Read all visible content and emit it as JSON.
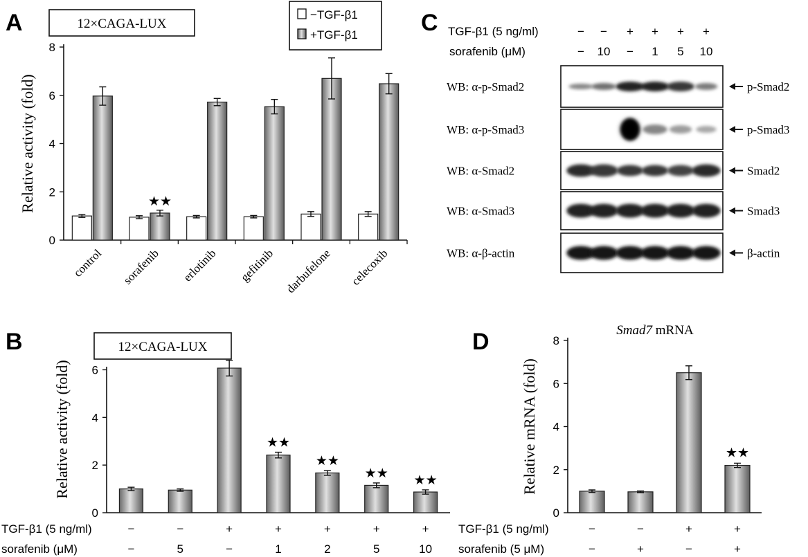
{
  "colors": {
    "bar_stim": "#9a9a9a",
    "bar_stim_dark": "#5a5a5a",
    "bar_ctrl": "#ffffff",
    "axis": "#111111"
  },
  "panels": {
    "a": {
      "letter": "A",
      "box_label": "12×CAGA-LUX",
      "legend_neg": "−TGF-β1",
      "legend_pos": "+TGF-β1"
    },
    "b": {
      "letter": "B",
      "box_label": "12×CAGA-LUX",
      "row1_label": "TGF-β1 (5 ng/ml)",
      "row1": [
        "−",
        "−",
        "+",
        "+",
        "+",
        "+",
        "+"
      ],
      "row2_label": "sorafenib (μM)",
      "row2": [
        "−",
        "5",
        "−",
        "1",
        "2",
        "5",
        "10"
      ]
    },
    "c": {
      "letter": "C",
      "row1_label": "TGF-β1 (5 ng/ml)",
      "row1": [
        "−",
        "−",
        "+",
        "+",
        "+",
        "+"
      ],
      "row2_label": "sorafenib (μM)",
      "row2": [
        "−",
        "10",
        "−",
        "1",
        "5",
        "10"
      ],
      "blots": [
        {
          "left": "WB: α-p-Smad2",
          "right": "p-Smad2"
        },
        {
          "left": "WB: α-p-Smad3",
          "right": "p-Smad3"
        },
        {
          "left": "WB: α-Smad2",
          "right": "Smad2"
        },
        {
          "left": "WB: α-Smad3",
          "right": "Smad3"
        },
        {
          "left": "WB: α-β-actin",
          "right": "β-actin"
        }
      ]
    },
    "d": {
      "letter": "D",
      "title_italic": "Smad7",
      "title_rest": " mRNA",
      "row1_label": "TGF-β1  (5 ng/ml)",
      "row1": [
        "−",
        "−",
        "+",
        "+"
      ],
      "row2_label": "sorafenib (5 μM)",
      "row2": [
        "−",
        "+",
        "−",
        "+"
      ]
    }
  },
  "chart_data": [
    {
      "type": "bar",
      "panel": "A",
      "ylabel": "Relative activity (fold)",
      "ylim": [
        0,
        8
      ],
      "yticks": [
        0,
        2,
        4,
        6,
        8
      ],
      "categories": [
        "control",
        "sorafenib",
        "erlotinib",
        "gefitinib",
        "darbufelone",
        "celecoxib"
      ],
      "series": [
        {
          "name": "−TGF-β1",
          "values": [
            1.0,
            0.95,
            0.97,
            0.97,
            1.08,
            1.08
          ],
          "errors": [
            0.06,
            0.06,
            0.05,
            0.05,
            0.1,
            0.1
          ]
        },
        {
          "name": "+TGF-β1",
          "values": [
            5.97,
            1.12,
            5.72,
            5.53,
            6.7,
            6.48
          ],
          "errors": [
            0.38,
            0.12,
            0.15,
            0.3,
            0.85,
            0.42
          ]
        }
      ],
      "significance": [
        {
          "category": "sorafenib",
          "series": 1,
          "mark": "★★"
        }
      ]
    },
    {
      "type": "bar",
      "panel": "B",
      "ylabel": "Relative activity (fold)",
      "ylim": [
        0,
        7
      ],
      "yticks": [
        0,
        2,
        4,
        6
      ],
      "values": [
        1.0,
        0.95,
        6.07,
        2.42,
        1.67,
        1.15,
        0.87
      ],
      "errors": [
        0.07,
        0.05,
        0.33,
        0.12,
        0.1,
        0.1,
        0.09
      ],
      "significance_marks": [
        "",
        "",
        "",
        "★★",
        "★★",
        "★★",
        "★★"
      ]
    },
    {
      "type": "bar",
      "panel": "D",
      "ylabel": "Relative mRNA (fold)",
      "ylim": [
        0,
        8
      ],
      "yticks": [
        0,
        2,
        4,
        6,
        8
      ],
      "values": [
        1.0,
        0.97,
        6.5,
        2.2
      ],
      "errors": [
        0.06,
        0.04,
        0.32,
        0.1
      ],
      "significance_marks": [
        "",
        "",
        "",
        "★★"
      ]
    }
  ]
}
